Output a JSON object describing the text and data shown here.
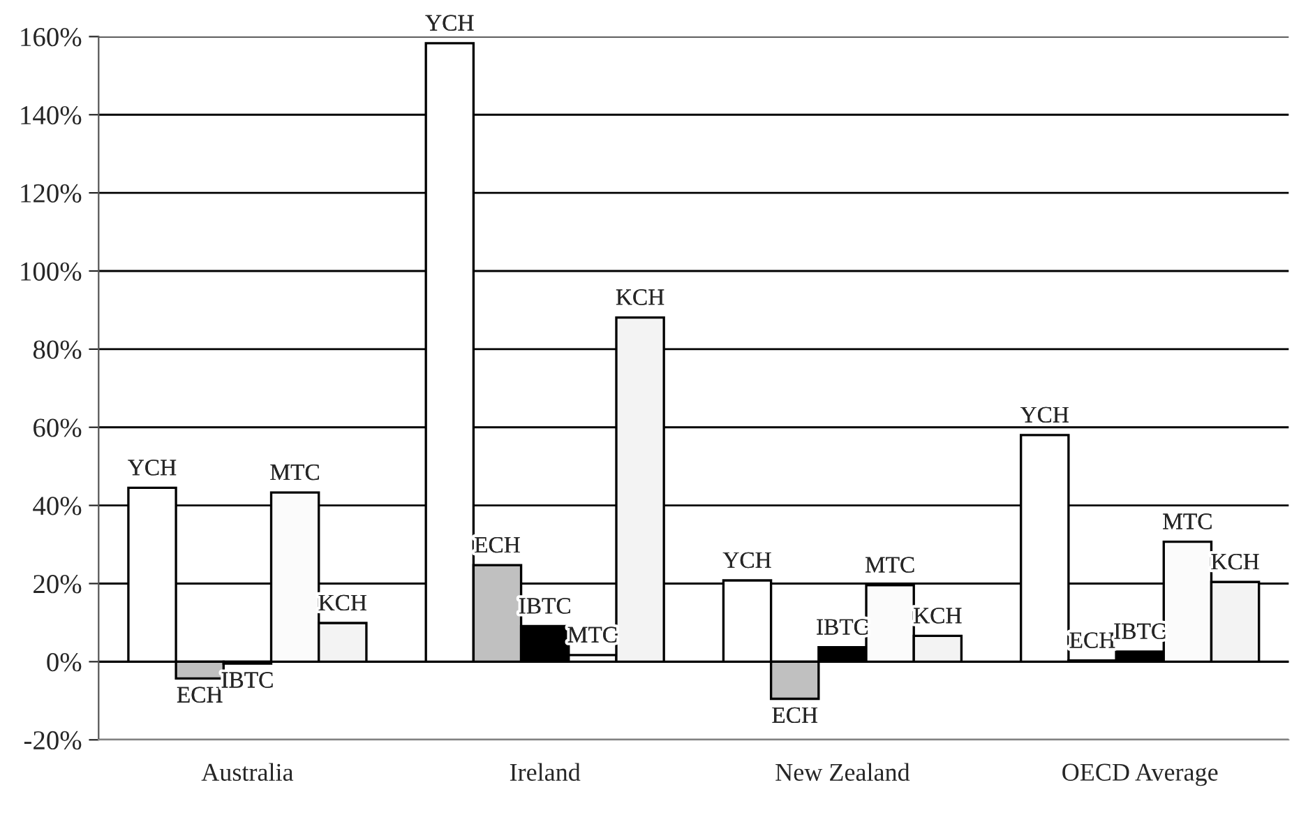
{
  "chart_data": {
    "type": "bar",
    "categories": [
      "Australia",
      "Ireland",
      "New Zealand",
      "OECD Average"
    ],
    "series": [
      {
        "name": "YCH",
        "color": "#ffffff",
        "values": [
          44.5,
          158.3,
          20.8,
          58
        ]
      },
      {
        "name": "ECH",
        "color": "#c0c0c0",
        "values": [
          -4.3,
          24.7,
          -9.5,
          0.3
        ]
      },
      {
        "name": "IBTC",
        "color": "#000000",
        "values": [
          -0.5,
          9.1,
          3.7,
          2.6
        ]
      },
      {
        "name": "MTC",
        "color": "#fbfbfb",
        "values": [
          43.3,
          1.7,
          19.6,
          30.7
        ]
      },
      {
        "name": "KCH",
        "color": "#f3f3f3",
        "values": [
          9.9,
          88.1,
          6.6,
          20.4
        ]
      }
    ],
    "ylim": [
      -20,
      160
    ],
    "yticks": [
      {
        "value": -20,
        "label": "-20%"
      },
      {
        "value": 0,
        "label": "0%"
      },
      {
        "value": 20,
        "label": "20%"
      },
      {
        "value": 40,
        "label": "40%"
      },
      {
        "value": 60,
        "label": "60%"
      },
      {
        "value": 80,
        "label": "80%"
      },
      {
        "value": 100,
        "label": "100%"
      },
      {
        "value": 120,
        "label": "120%"
      },
      {
        "value": 140,
        "label": "140%"
      },
      {
        "value": 160,
        "label": "160%"
      }
    ],
    "ref_lines": [
      {
        "axis": "y",
        "value": 0,
        "color": "#000000"
      }
    ],
    "grid": "y",
    "legend": false
  }
}
